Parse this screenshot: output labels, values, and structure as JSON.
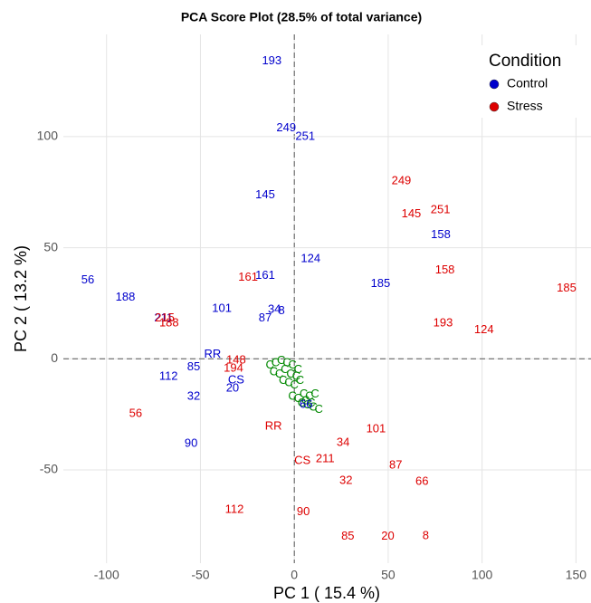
{
  "chart_data": {
    "type": "scatter",
    "title": "PCA Score Plot (28.5% of total variance)",
    "x_label": "PC 1 ( 15.4 %)",
    "y_label": "PC 2 ( 13.2 %)",
    "legend_title": "Condition",
    "legend_position": "top-right",
    "grid": true,
    "xlim": [
      -123,
      158
    ],
    "ylim": [
      -92,
      146
    ],
    "xticks": [
      -100,
      -50,
      0,
      50,
      100,
      150
    ],
    "yticks": [
      -50,
      0,
      50,
      100
    ],
    "series": [
      {
        "name": "Control",
        "color": "#0000cc",
        "labels": [
          "193",
          "249",
          "251",
          "145",
          "124",
          "158",
          "56",
          "188",
          "211",
          "101",
          "161",
          "34",
          "8",
          "87",
          "185",
          "RR",
          "85",
          "112",
          "CS",
          "20",
          "32",
          "90",
          "66"
        ],
        "x": [
          -12,
          -4.3,
          5.8,
          -15.5,
          8.7,
          78,
          -110,
          -90,
          -69.6,
          -38.6,
          -15.5,
          -10.6,
          -6.8,
          -15.5,
          45.9,
          -43.5,
          -53.6,
          -67,
          -31,
          -32.9,
          -53.6,
          -55,
          6.3
        ],
        "values": [
          134,
          103.7,
          100,
          73.6,
          45,
          55.7,
          35.4,
          27.6,
          18.3,
          22.4,
          37.4,
          22,
          21.5,
          18.3,
          33.7,
          2,
          -3.7,
          -8.1,
          -9.8,
          -13.4,
          -17.1,
          -38.2,
          -20.7
        ]
      },
      {
        "name": "Stress",
        "color": "#dd0000",
        "labels": [
          "249",
          "145",
          "251",
          "158",
          "185",
          "193",
          "124",
          "161",
          "215",
          "188",
          "148",
          "194",
          "56",
          "RR",
          "101",
          "34",
          "211",
          "CS",
          "87",
          "32",
          "66",
          "112",
          "90",
          "85",
          "20",
          "8"
        ],
        "x": [
          57,
          62.3,
          77.8,
          80.2,
          145,
          79.2,
          101,
          -24.6,
          -69,
          -66.7,
          -31,
          -32.4,
          -84.5,
          -11.1,
          43.5,
          26,
          16.4,
          4.3,
          54,
          27.5,
          68,
          -31.9,
          4.8,
          28.5,
          49.8,
          70
        ],
        "values": [
          80,
          65,
          67,
          39.8,
          31.7,
          15.9,
          13,
          36.6,
          18.3,
          15.9,
          -0.8,
          -4.5,
          -24.8,
          -30.5,
          -31.7,
          -37.8,
          -45.1,
          -45.9,
          -48,
          -54.9,
          -55.3,
          -67.9,
          -69.1,
          -80,
          -80,
          -79.7
        ]
      }
    ],
    "loadings": {
      "label": "C",
      "color": "#008800",
      "x": [
        -13,
        -10,
        -7,
        -4,
        -1,
        2,
        -11,
        -8,
        -5,
        -2,
        1,
        -6,
        -3,
        0,
        3,
        -1,
        2,
        5,
        8,
        11,
        4,
        7,
        10,
        13,
        6,
        9
      ],
      "values": [
        -3,
        -2,
        -1,
        -2,
        -3,
        -5,
        -6,
        -7,
        -5,
        -7,
        -8,
        -10,
        -11,
        -12,
        -10,
        -17,
        -18,
        -16,
        -17,
        -16,
        -20,
        -21,
        -22,
        -23,
        -19,
        -20
      ]
    }
  }
}
